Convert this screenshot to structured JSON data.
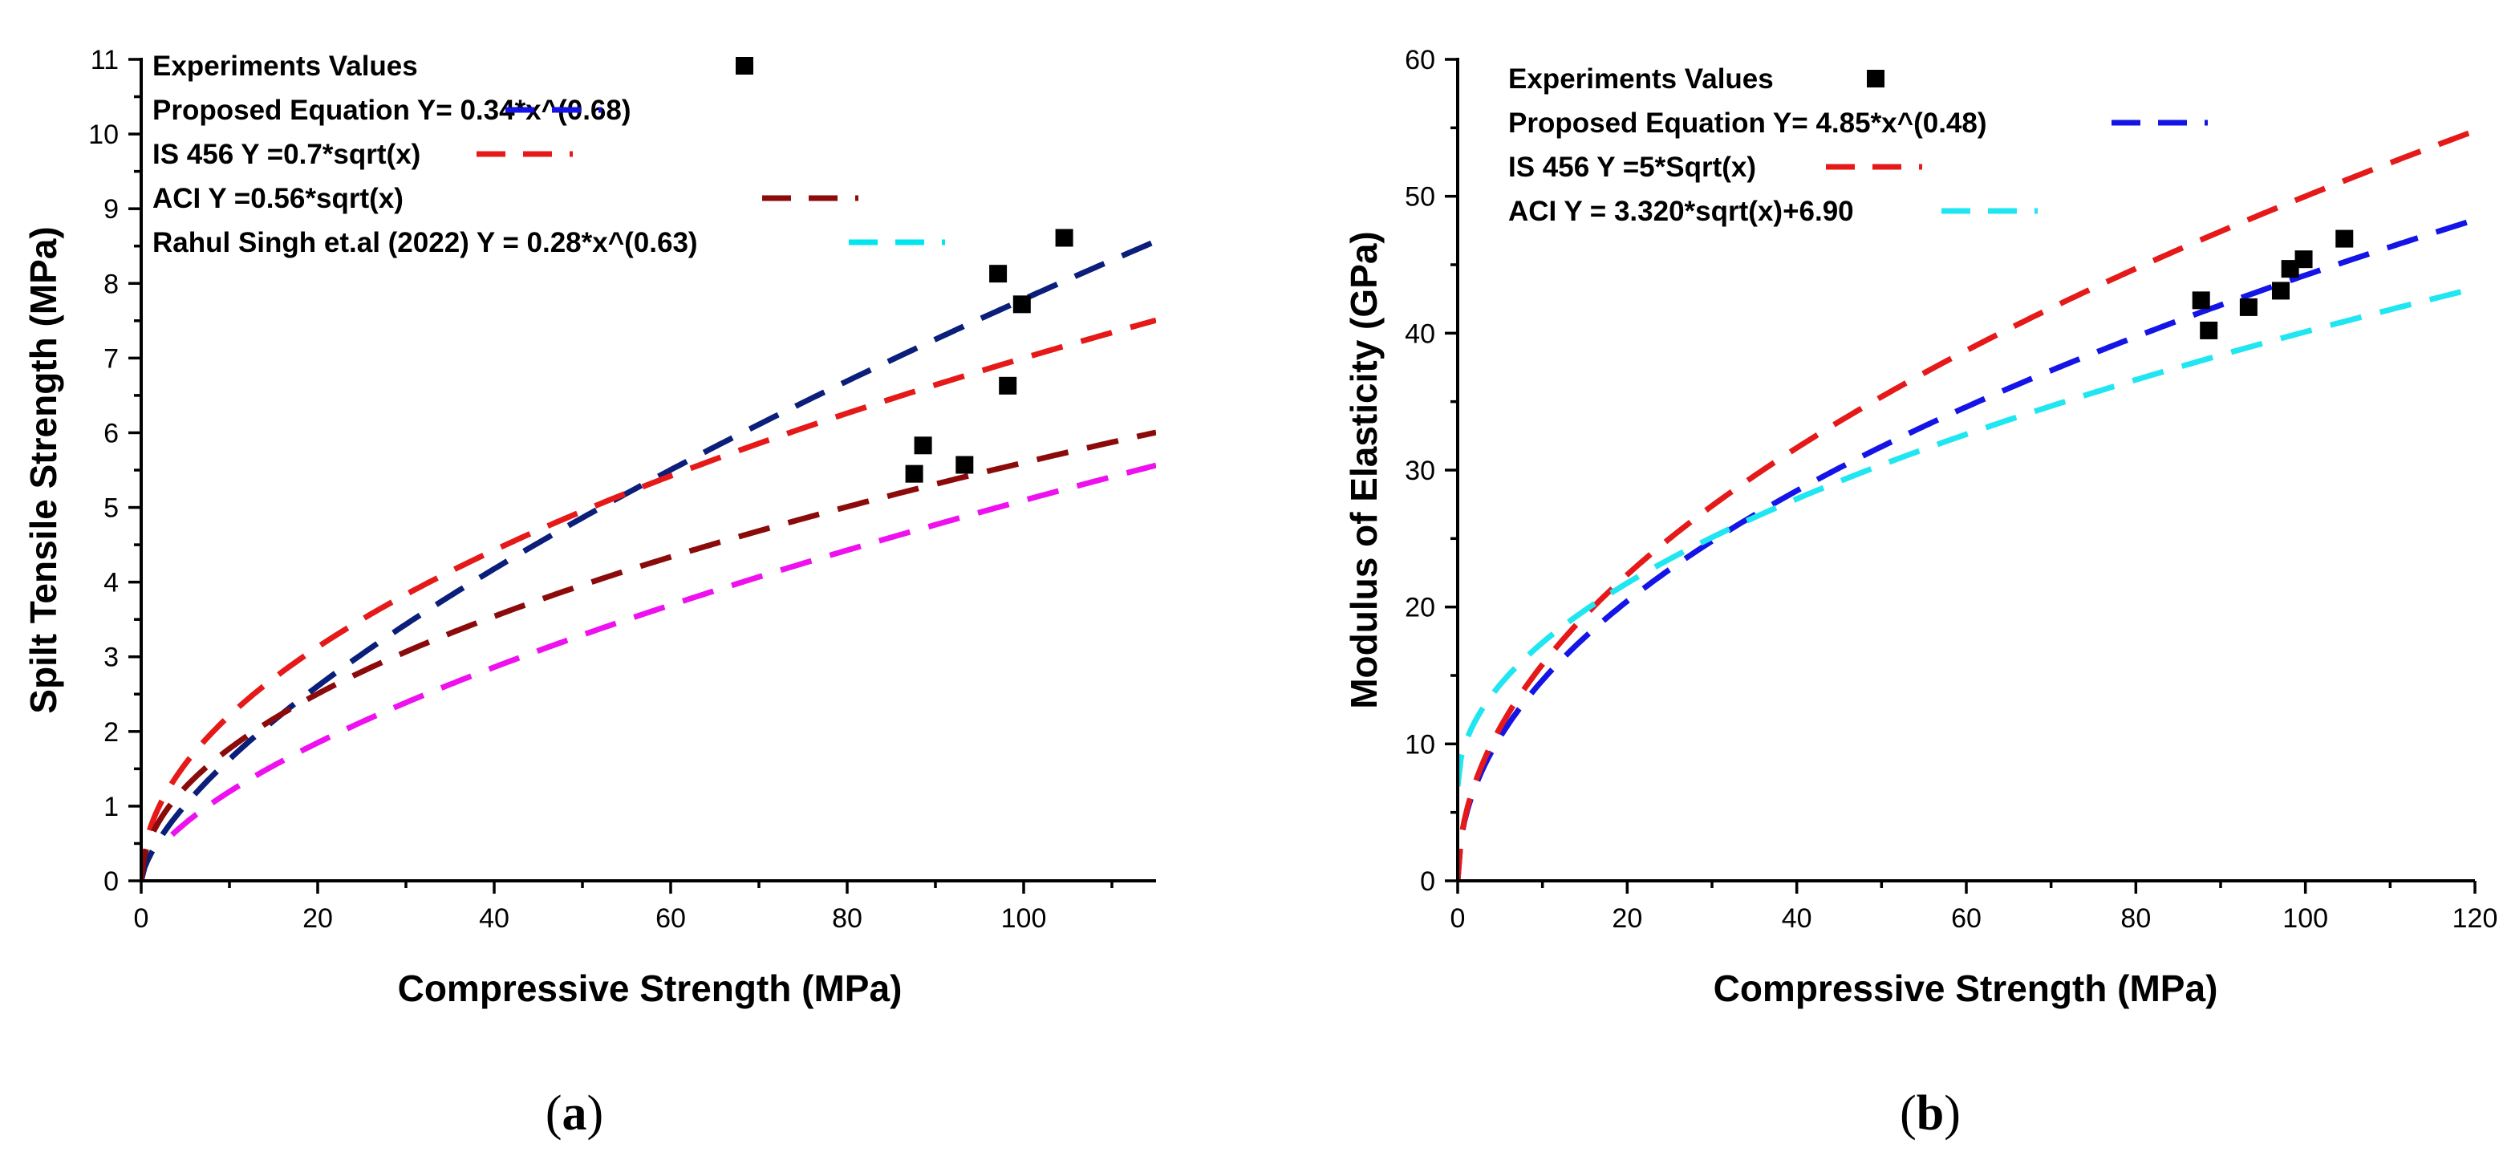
{
  "chart_data": [
    {
      "panel": "(a)",
      "panel_letter": "a",
      "type": "scatter",
      "xlabel": "Compressive Strength (MPa)",
      "ylabel": "Spilt Tensile Strength (MPa)",
      "xlim": [
        0,
        115
      ],
      "ylim": [
        0,
        11
      ],
      "xticks": [
        0,
        20,
        40,
        60,
        80,
        100
      ],
      "yticks": [
        0,
        1,
        2,
        3,
        4,
        5,
        6,
        7,
        8,
        9,
        10,
        11
      ],
      "legend_position": "top-left",
      "points": [
        {
          "x": 87.6,
          "y": 5.45
        },
        {
          "x": 88.6,
          "y": 5.83
        },
        {
          "x": 93.3,
          "y": 5.57
        },
        {
          "x": 97.1,
          "y": 8.13
        },
        {
          "x": 98.2,
          "y": 6.63
        },
        {
          "x": 99.8,
          "y": 7.72
        },
        {
          "x": 104.6,
          "y": 8.61
        }
      ],
      "series": [
        {
          "name": "Experiments Values",
          "kind": "marker",
          "color": "#000000"
        },
        {
          "name": "Proposed Equation Y= 0.34*x^(0.68)",
          "kind": "curve",
          "color": "#1414e6",
          "curve_color": "#0a1e7a",
          "coef": 0.34,
          "exp": 0.68,
          "add": 0,
          "xmin": 0,
          "xmax": 115
        },
        {
          "name": "IS 456 Y =0.7*sqrt(x)",
          "kind": "curve",
          "color": "#e61919",
          "coef": 0.7,
          "exp": 0.5,
          "add": 0,
          "xmin": 0,
          "xmax": 115
        },
        {
          "name": "ACI Y =0.56*sqrt(x)",
          "kind": "curve",
          "color": "#8b0a0a",
          "coef": 0.56,
          "exp": 0.5,
          "add": 0,
          "xmin": 0,
          "xmax": 115
        },
        {
          "name": "Rahul Singh et.al (2022) Y = 0.28*x^(0.63)",
          "kind": "curve",
          "color": "#00e5ee",
          "curve_color": "#ee10ee",
          "coef": 0.28,
          "exp": 0.63,
          "add": 0,
          "xmin": 3.5,
          "xmax": 115
        }
      ]
    },
    {
      "panel": "(b)",
      "panel_letter": "b",
      "type": "scatter",
      "xlabel": "Compressive Strength (MPa)",
      "ylabel": "Modulus of Elasticity (GPa)",
      "xlim": [
        0,
        120
      ],
      "ylim": [
        0,
        60
      ],
      "xticks": [
        0,
        20,
        40,
        60,
        80,
        100,
        120
      ],
      "yticks": [
        0,
        10,
        20,
        30,
        40,
        50,
        60
      ],
      "legend_position": "top-left",
      "points": [
        {
          "x": 87.7,
          "y": 42.4
        },
        {
          "x": 88.6,
          "y": 40.2
        },
        {
          "x": 93.3,
          "y": 41.9
        },
        {
          "x": 97.1,
          "y": 43.1
        },
        {
          "x": 98.2,
          "y": 44.7
        },
        {
          "x": 99.8,
          "y": 45.4
        },
        {
          "x": 104.6,
          "y": 46.9
        }
      ],
      "series": [
        {
          "name": "Experiments Values",
          "kind": "marker",
          "color": "#000000"
        },
        {
          "name": "Proposed Equation Y= 4.85*x^(0.48)",
          "kind": "curve",
          "color": "#1414e6",
          "coef": 4.85,
          "exp": 0.48,
          "add": 0,
          "xmin": 0,
          "xmax": 120
        },
        {
          "name": "IS 456 Y =5*Sqrt(x)",
          "kind": "curve",
          "color": "#e61919",
          "coef": 5,
          "exp": 0.5,
          "add": 0,
          "xmin": 0,
          "xmax": 120
        },
        {
          "name": "ACI Y = 3.320*sqrt(x)+6.90",
          "kind": "curve",
          "color": "#1fe6f0",
          "coef": 3.32,
          "exp": 0.5,
          "add": 6.9,
          "xmin": 0,
          "xmax": 120
        }
      ]
    }
  ]
}
